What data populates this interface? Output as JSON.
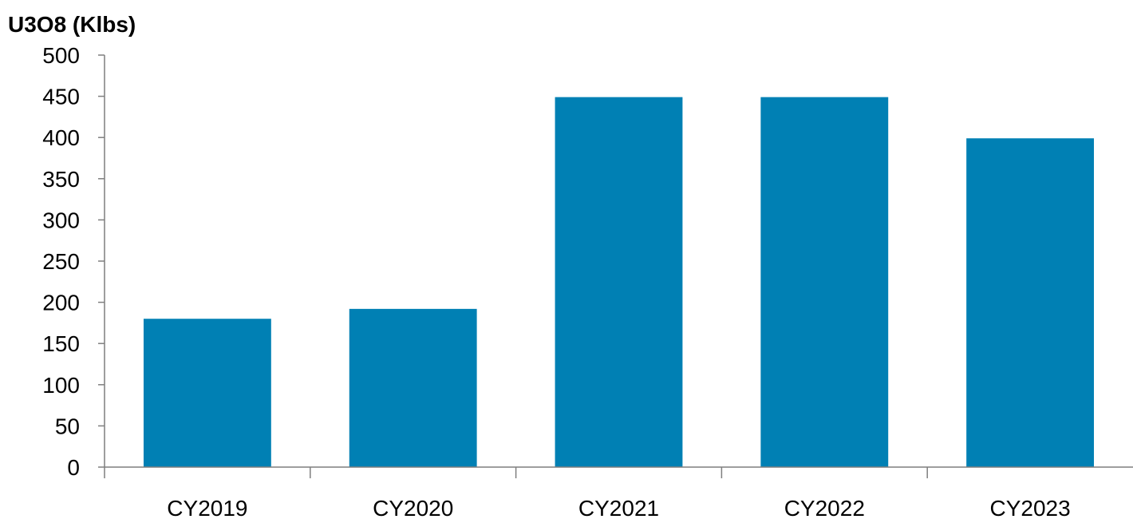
{
  "chart_data": {
    "type": "bar",
    "ylabel": "U3O8 (Klbs)",
    "categories": [
      "CY2019",
      "CY2020",
      "CY2021",
      "CY2022",
      "CY2023"
    ],
    "values": [
      180,
      192,
      449,
      449,
      399
    ],
    "ylim": [
      0,
      500
    ],
    "yticks": [
      0,
      50,
      100,
      150,
      200,
      250,
      300,
      350,
      400,
      450,
      500
    ],
    "grid": false,
    "legend": "none",
    "bar_color": "#0080b4"
  }
}
